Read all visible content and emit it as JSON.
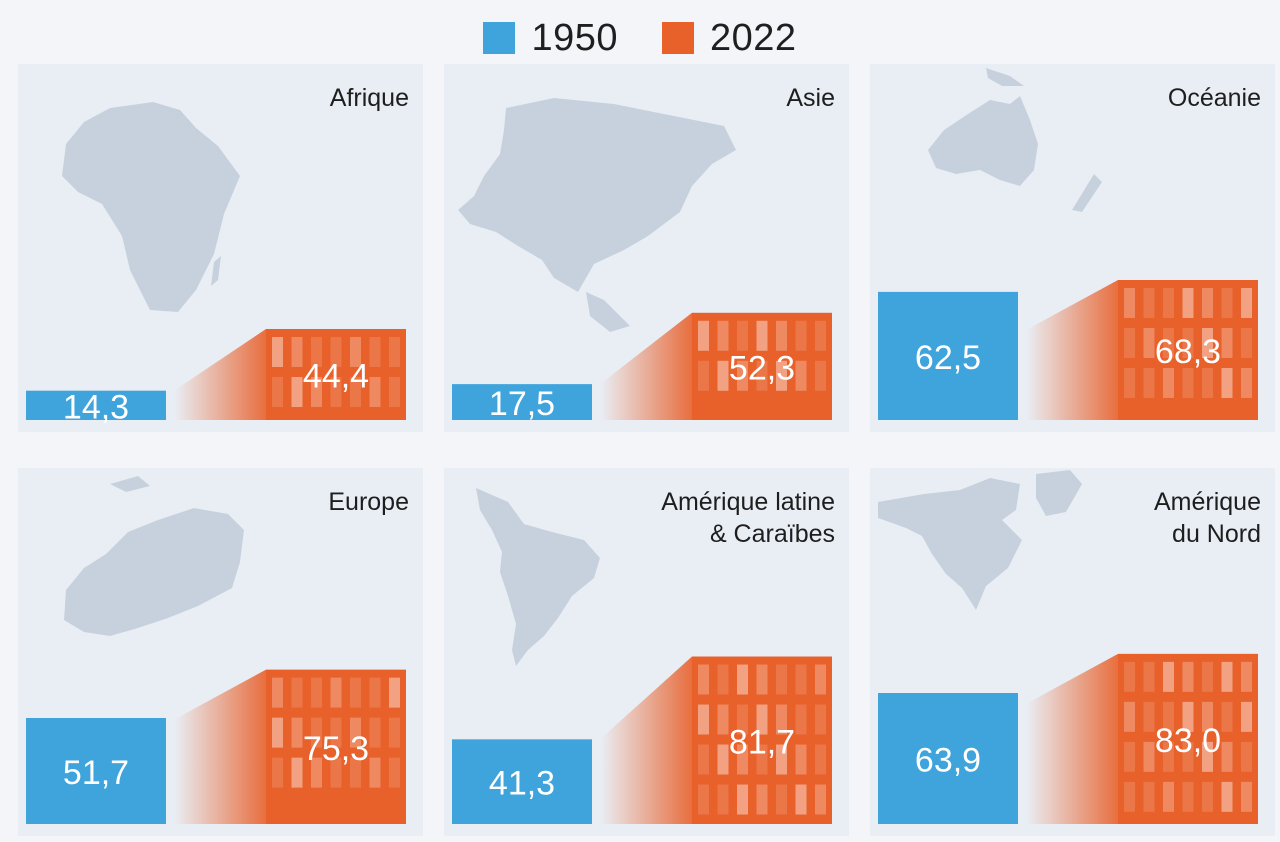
{
  "legend": {
    "items": [
      {
        "label": "1950",
        "color": "#3fa3dc"
      },
      {
        "label": "2022",
        "color": "#e8602a"
      }
    ]
  },
  "chart_data": {
    "type": "bar",
    "series_names": [
      "1950",
      "2022"
    ],
    "ylim": [
      0,
      100
    ],
    "panels": [
      {
        "title": "Afrique",
        "v1950": 14.3,
        "v2022": 44.4,
        "label1950": "14,3",
        "label2022": "44,4",
        "map_icon": "africa-map"
      },
      {
        "title": "Asie",
        "v1950": 17.5,
        "v2022": 52.3,
        "label1950": "17,5",
        "label2022": "52,3",
        "map_icon": "asia-map"
      },
      {
        "title": "Océanie",
        "v1950": 62.5,
        "v2022": 68.3,
        "label1950": "62,5",
        "label2022": "68,3",
        "map_icon": "oceania-map"
      },
      {
        "title": "Europe",
        "v1950": 51.7,
        "v2022": 75.3,
        "label1950": "51,7",
        "label2022": "75,3",
        "map_icon": "europe-map"
      },
      {
        "title": "Amérique latine\n& Caraïbes",
        "v1950": 41.3,
        "v2022": 81.7,
        "label1950": "41,3",
        "label2022": "81,7",
        "map_icon": "latin-america-map"
      },
      {
        "title": "Amérique\ndu Nord",
        "v1950": 63.9,
        "v2022": 83.0,
        "label1950": "63,9",
        "label2022": "83,0",
        "map_icon": "north-america-map"
      }
    ]
  }
}
